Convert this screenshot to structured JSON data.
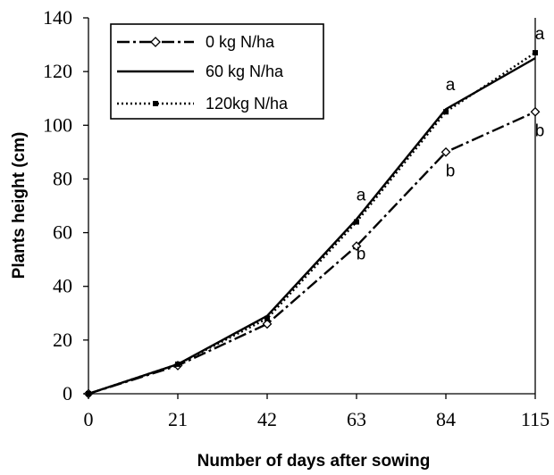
{
  "chart_data": {
    "type": "line",
    "xlabel": "Number of days after sowing",
    "ylabel": "Plants height (cm)",
    "ylim": [
      0,
      140
    ],
    "yticks": [
      0,
      20,
      40,
      60,
      80,
      100,
      120,
      140
    ],
    "x": [
      0,
      21,
      42,
      63,
      84,
      115
    ],
    "x_tick_labels": [
      "0",
      "21",
      "42",
      "63",
      "84",
      "115"
    ],
    "x_scale": "categorical-equal-spacing",
    "grid": false,
    "legend_placement": "top-left",
    "series": [
      {
        "name": "0 kg N/ha",
        "values": [
          0,
          10.5,
          26,
          55,
          90,
          105
        ],
        "line_style": "dash-dot",
        "marker": "diamond",
        "color": "#000000"
      },
      {
        "name": "60 kg N/ha",
        "values": [
          0,
          11,
          29,
          65,
          106,
          125
        ],
        "line_style": "solid",
        "marker": "none",
        "color": "#000000"
      },
      {
        "name": "120kg N/ha",
        "values": [
          0,
          11,
          28,
          64,
          105,
          127
        ],
        "line_style": "dotted",
        "marker": "square",
        "color": "#000000"
      }
    ],
    "annotations": [
      {
        "text": "a",
        "x": 63,
        "y": 72
      },
      {
        "text": "b",
        "x": 63,
        "y": 50
      },
      {
        "text": "a",
        "x": 84,
        "y": 113
      },
      {
        "text": "b",
        "x": 84,
        "y": 81
      },
      {
        "text": "a",
        "x": 115,
        "y": 132
      },
      {
        "text": "b",
        "x": 115,
        "y": 96
      }
    ]
  }
}
